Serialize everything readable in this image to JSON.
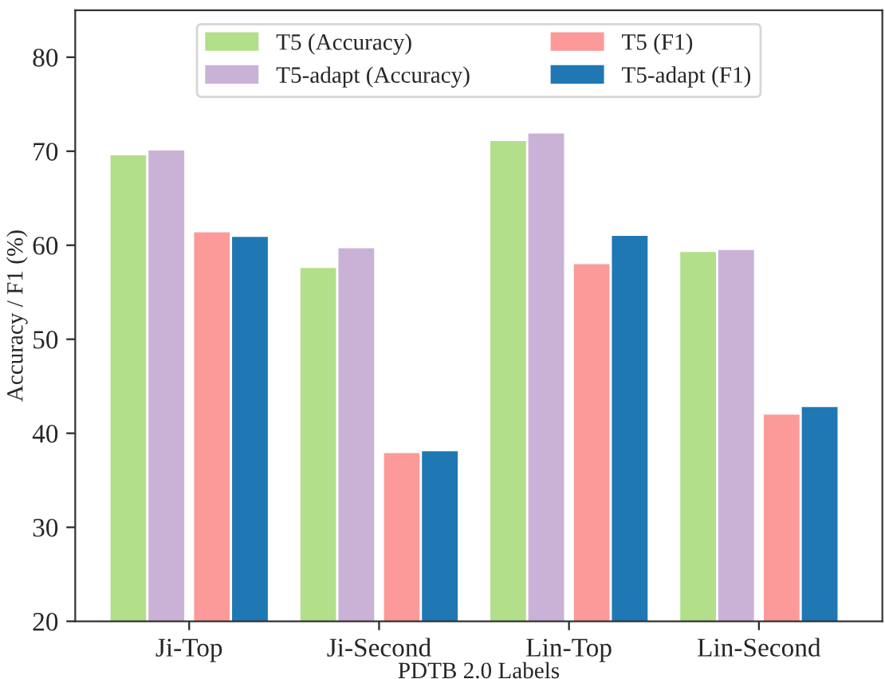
{
  "chart_data": {
    "type": "bar",
    "xlabel": "PDTB 2.0 Labels",
    "ylabel": "Accuracy / F1 (%)",
    "categories": [
      "Ji-Top",
      "Ji-Second",
      "Lin-Top",
      "Lin-Second"
    ],
    "series": [
      {
        "name": "T5 (Accuracy)",
        "color": "#b2df8a",
        "values": [
          69.7,
          57.7,
          71.2,
          59.4
        ]
      },
      {
        "name": "T5-adapt (Accuracy)",
        "color": "#cab2d6",
        "values": [
          70.2,
          59.8,
          72.0,
          59.6
        ]
      },
      {
        "name": "T5 (F1)",
        "color": "#fb9a99",
        "values": [
          61.5,
          38.0,
          58.1,
          42.1
        ]
      },
      {
        "name": "T5-adapt (F1)",
        "color": "#1f78b4",
        "values": [
          61.0,
          38.2,
          61.1,
          42.9
        ]
      }
    ],
    "ylim": [
      20,
      85
    ],
    "yticks": [
      20,
      30,
      40,
      50,
      60,
      70,
      80
    ],
    "grid": false,
    "legend": "top"
  }
}
